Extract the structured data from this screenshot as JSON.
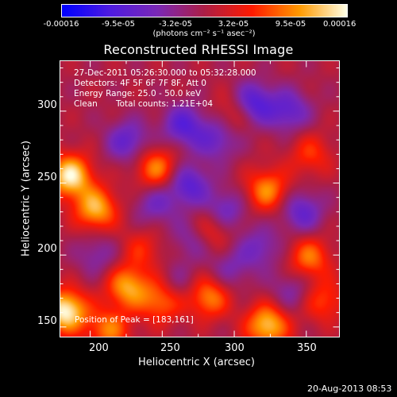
{
  "colorbar": {
    "tick_labels": [
      "-0.00016",
      "-9.5e-05",
      "-3.2e-05",
      "3.2e-05",
      "9.5e-05",
      "0.00016"
    ],
    "tick_values": [
      -0.00016,
      -9.5e-05,
      -3.2e-05,
      3.2e-05,
      9.5e-05,
      0.00016
    ],
    "units": "(photons cm⁻² s⁻¹ asec⁻²)",
    "colormap": [
      "#0000ff",
      "#4e1be0",
      "#7a28b6",
      "#ad1e46",
      "#ff1a00",
      "#ff9a00",
      "#ffffe6"
    ]
  },
  "chart_data": {
    "type": "heatmap",
    "title": "Reconstructed RHESSI Image",
    "xlabel": "Heliocentric X (arcsec)",
    "ylabel": "Heliocentric Y (arcsec)",
    "xlim": [
      179,
      373
    ],
    "ylim": [
      143,
      335
    ],
    "xticks": [
      200,
      250,
      300,
      350
    ],
    "yticks": [
      150,
      200,
      250,
      300
    ],
    "value_range": [
      -0.00016,
      0.00016
    ],
    "peak": [
      183,
      161
    ],
    "features": [
      {
        "x": 183,
        "y": 161,
        "value": 0.00016
      },
      {
        "x": 186,
        "y": 255,
        "value": 0.00015
      },
      {
        "x": 204,
        "y": 232,
        "value": 0.00012
      },
      {
        "x": 323,
        "y": 151,
        "value": 0.00013
      },
      {
        "x": 246,
        "y": 260,
        "value": 0.0001
      },
      {
        "x": 323,
        "y": 245,
        "value": 0.0001
      },
      {
        "x": 226,
        "y": 178,
        "value": 0.00011
      },
      {
        "x": 282,
        "y": 171,
        "value": 0.0001
      },
      {
        "x": 249,
        "y": 168,
        "value": 9e-05
      },
      {
        "x": 213,
        "y": 148,
        "value": 9e-05
      },
      {
        "x": 352,
        "y": 198,
        "value": 9e-05
      },
      {
        "x": 284,
        "y": 218,
        "value": 8e-05
      },
      {
        "x": 302,
        "y": 300,
        "value": 7e-05
      },
      {
        "x": 353,
        "y": 270,
        "value": 6e-05
      },
      {
        "x": 362,
        "y": 168,
        "value": 7e-05
      },
      {
        "x": 236,
        "y": 204,
        "value": 5e-05
      },
      {
        "x": 265,
        "y": 290,
        "value": -9e-05
      },
      {
        "x": 312,
        "y": 305,
        "value": -0.00012
      },
      {
        "x": 338,
        "y": 300,
        "value": -8e-05
      },
      {
        "x": 226,
        "y": 279,
        "value": -8e-05
      },
      {
        "x": 268,
        "y": 249,
        "value": -9e-05
      },
      {
        "x": 293,
        "y": 230,
        "value": -8e-05
      },
      {
        "x": 347,
        "y": 230,
        "value": -8e-05
      },
      {
        "x": 288,
        "y": 280,
        "value": -7e-05
      },
      {
        "x": 272,
        "y": 212,
        "value": -6e-05
      },
      {
        "x": 245,
        "y": 235,
        "value": -6e-05
      },
      {
        "x": 318,
        "y": 205,
        "value": -6e-05
      },
      {
        "x": 205,
        "y": 200,
        "value": -5e-05
      },
      {
        "x": 340,
        "y": 175,
        "value": -5e-05
      },
      {
        "x": 297,
        "y": 190,
        "value": -5e-05
      },
      {
        "x": 262,
        "y": 180,
        "value": -4e-05
      }
    ],
    "info": {
      "time_range": "27-Dec-2011 05:26:30.000 to 05:32:28.000",
      "detectors": "Detectors: 4F 5F 6F 7F 8F, Att 0",
      "energy": "Energy Range: 25.0 - 50.0 keV",
      "method": "Clean",
      "total_counts": "Total counts: 1.21E+04",
      "peak_text": "Position of Peak = [183,161]"
    }
  },
  "footer": {
    "date": "20-Aug-2013 08:53"
  }
}
